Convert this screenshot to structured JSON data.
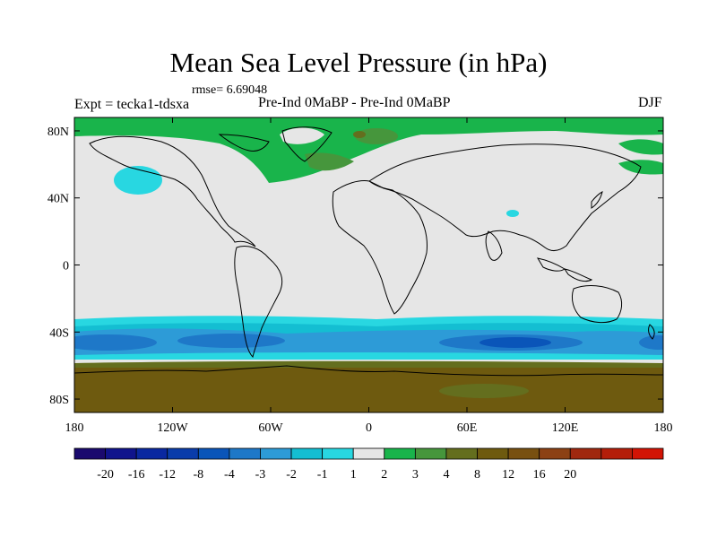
{
  "figure": {
    "title": "Mean Sea Level Pressure (in hPa)",
    "rmse_text": "rmse= 6.69048",
    "left_label": "Expt = tecka1-tdsxa",
    "center_label": "Pre-Ind 0MaBP - Pre-Ind    0MaBP",
    "right_label": "DJF"
  },
  "axes": {
    "lat_ticks": [
      "80N",
      "40N",
      "0",
      "40S",
      "80S"
    ],
    "lon_ticks": [
      "180",
      "120W",
      "60W",
      "0",
      "60E",
      "120E",
      "180"
    ],
    "lat_values": [
      80,
      40,
      0,
      -40,
      -80
    ],
    "lon_values": [
      -180,
      -120,
      -60,
      0,
      60,
      120,
      180
    ]
  },
  "colorbar": {
    "colors": [
      "#1a0a6e",
      "#10148c",
      "#0a28a0",
      "#0a3caa",
      "#0a55b9",
      "#1e78c8",
      "#2d9bd7",
      "#14bed2",
      "#28d7e1",
      "#e6e6e6",
      "#19b44b",
      "#46963c",
      "#646e1e",
      "#6e5a0f",
      "#785010",
      "#8c4114",
      "#a0280f",
      "#b41e0a",
      "#d21405"
    ],
    "labels": [
      "-20",
      "-16",
      "-12",
      "-8",
      "-4",
      "-3",
      "-2",
      "-1",
      "1",
      "2",
      "3",
      "4",
      "8",
      "12",
      "16",
      "20"
    ]
  },
  "map_colors": {
    "background": "#e6e6e6",
    "frame": "#000000",
    "coast": "#000000"
  }
}
